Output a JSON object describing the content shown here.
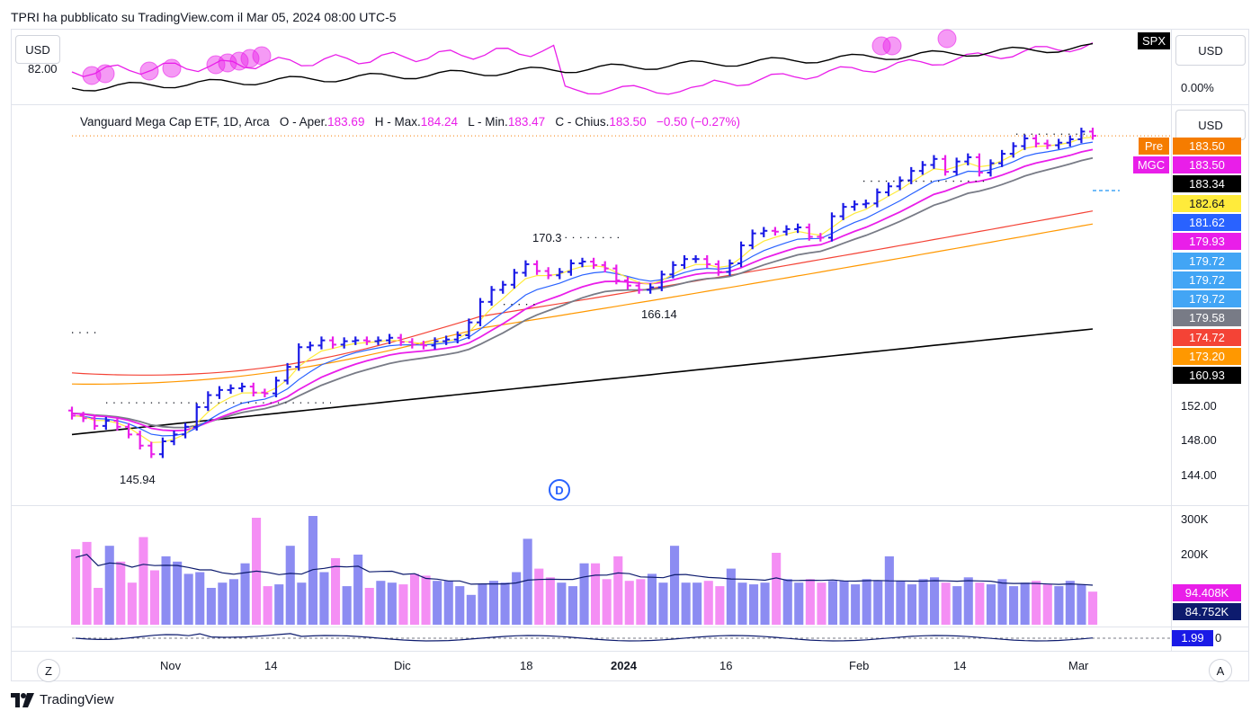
{
  "header": {
    "publish_line": "TPRI ha pubblicato su TradingView.com il Mar 05, 2024 08:00 UTC-5"
  },
  "footer": {
    "logo_text": "TradingView"
  },
  "top_pane": {
    "currency": "USD",
    "currency_right": "USD",
    "clipped_value": "82.00",
    "symbol_tag": "SPX",
    "right_value": "0.00%"
  },
  "main_pane": {
    "currency": "USD",
    "legend": {
      "name": "Vanguard Mega Cap ETF, 1D, Arca",
      "o_label": "O - Aper.",
      "o_value": "183.69",
      "h_label": "H - Max.",
      "h_value": "184.24",
      "l_label": "L - Min.",
      "l_value": "183.47",
      "c_label": "C - Chius.",
      "c_value": "183.50",
      "change": "−0.50 (−0.27%)"
    },
    "annotations": {
      "high": "170.3",
      "low_mid": "166.14",
      "low": "145.94",
      "dividend_marker": "D"
    },
    "price_labels": [
      {
        "tag": "Pre",
        "value": "183.50",
        "color": "#f57c00"
      },
      {
        "tag": "MGC",
        "value": "183.50",
        "color": "#e91ee9"
      },
      {
        "tag": "",
        "value": "183.34",
        "color": "#000000"
      },
      {
        "tag": "",
        "value": "182.64",
        "color": "#ffeb3b"
      },
      {
        "tag": "",
        "value": "181.62",
        "color": "#2962ff"
      },
      {
        "tag": "",
        "value": "179.93",
        "color": "#e91ee9"
      },
      {
        "tag": "",
        "value": "179.72",
        "color": "#42a5f5"
      },
      {
        "tag": "",
        "value": "179.72",
        "color": "#42a5f5"
      },
      {
        "tag": "",
        "value": "179.72",
        "color": "#42a5f5"
      },
      {
        "tag": "",
        "value": "179.58",
        "color": "#787b86"
      },
      {
        "tag": "",
        "value": "174.72",
        "color": "#f44336"
      },
      {
        "tag": "",
        "value": "173.20",
        "color": "#ff9800"
      },
      {
        "tag": "",
        "value": "160.93",
        "color": "#000000"
      }
    ],
    "axis_ticks": [
      "152.00",
      "148.00",
      "144.00"
    ]
  },
  "volume_pane": {
    "axis_ticks": [
      "300K",
      "200K"
    ],
    "labels": [
      {
        "value": "94.408K",
        "color": "#e91ee9"
      },
      {
        "value": "84.752K",
        "color": "#0d1b6e"
      }
    ]
  },
  "indicator_pane": {
    "value_label": "1.99",
    "axis_zero": "0"
  },
  "time_axis": {
    "labels": [
      "Nov",
      "14",
      "Dic",
      "18",
      "2024",
      "16",
      "Feb",
      "14",
      "Mar"
    ],
    "left_button": "Z",
    "right_button": "A"
  },
  "colors": {
    "up_bar": "#1a1ae6",
    "down_bar": "#e91ee9",
    "ma_yellow": "#ffeb3b",
    "ma_blue": "#2962ff",
    "ma_magenta": "#e91ee9",
    "ma_gray": "#787b86",
    "ma_red": "#f44336",
    "ma_orange": "#ff9800",
    "ma_black": "#000000"
  },
  "chart_data": {
    "type": "line",
    "title": "Vanguard Mega Cap ETF, 1D, Arca",
    "x_range": [
      "2023-10-26",
      "2024-03-05"
    ],
    "ylim": [
      142,
      186
    ],
    "price_close": [
      150.8,
      150.5,
      149.6,
      150.2,
      149.5,
      148.6,
      147.3,
      146.3,
      147.8,
      148.6,
      149.5,
      151.8,
      153.2,
      153.8,
      154.0,
      154.2,
      153.5,
      153.4,
      154.9,
      156.5,
      158.8,
      159.0,
      159.6,
      159.1,
      159.5,
      159.6,
      159.5,
      159.6,
      159.9,
      159.4,
      159.1,
      159.0,
      159.5,
      159.7,
      160.2,
      161.7,
      164.1,
      165.5,
      166.1,
      167.5,
      168.5,
      167.7,
      167.2,
      167.6,
      168.6,
      168.8,
      168.4,
      168.0,
      166.6,
      166.0,
      165.5,
      165.8,
      167.3,
      168.4,
      169.1,
      169.1,
      168.5,
      167.6,
      168.6,
      170.7,
      172.1,
      172.4,
      172.3,
      172.6,
      172.8,
      171.7,
      171.6,
      174.1,
      175.2,
      175.5,
      175.6,
      176.9,
      177.6,
      178.3,
      179.4,
      180.1,
      180.8,
      179.3,
      180.5,
      181.0,
      179.2,
      180.3,
      181.4,
      182.3,
      183.2,
      182.6,
      182.4,
      182.7,
      183.1,
      184.0,
      183.5
    ],
    "annotations": {
      "swing_high": 170.3,
      "swing_low_mid": 166.14,
      "swing_low": 145.94
    },
    "series": [
      {
        "name": "",
        "color": "#000000",
        "start": 148.6,
        "end": 160.93
      },
      {
        "name": "",
        "color": "#ff9800",
        "start": 154.5,
        "end": 173.2
      },
      {
        "name": "",
        "color": "#f44336",
        "start": 155.8,
        "end": 174.72
      },
      {
        "name": "",
        "color": "#787b86",
        "end": 179.58
      },
      {
        "name": "",
        "color": "#e91ee9",
        "end": 179.93
      },
      {
        "name": "",
        "color": "#2962ff",
        "end": 181.62
      },
      {
        "name": "",
        "color": "#ffeb3b",
        "end": 182.64
      }
    ],
    "volume": [
      215,
      236,
      105,
      225,
      180,
      120,
      250,
      155,
      195,
      180,
      145,
      150,
      105,
      120,
      130,
      175,
      305,
      110,
      115,
      225,
      120,
      310,
      150,
      190,
      110,
      200,
      105,
      125,
      120,
      115,
      145,
      140,
      125,
      125,
      110,
      85,
      115,
      125,
      120,
      150,
      245,
      160,
      135,
      120,
      110,
      175,
      175,
      130,
      195,
      125,
      130,
      145,
      120,
      225,
      120,
      120,
      125,
      110,
      160,
      120,
      115,
      120,
      205,
      130,
      120,
      130,
      120,
      125,
      125,
      115,
      130,
      125,
      195,
      125,
      115,
      130,
      135,
      120,
      110,
      135,
      120,
      115,
      130,
      110,
      120,
      125,
      115,
      110,
      125,
      115,
      94.408
    ],
    "volume_ma": 84.752,
    "volume_ticks": [
      "300K",
      "200K"
    ],
    "price_ticks": [
      "152.00",
      "148.00",
      "144.00"
    ],
    "x_tick_labels": [
      "Nov",
      "14",
      "Dic",
      "18",
      "2024",
      "16",
      "Feb",
      "14",
      "Mar"
    ]
  }
}
